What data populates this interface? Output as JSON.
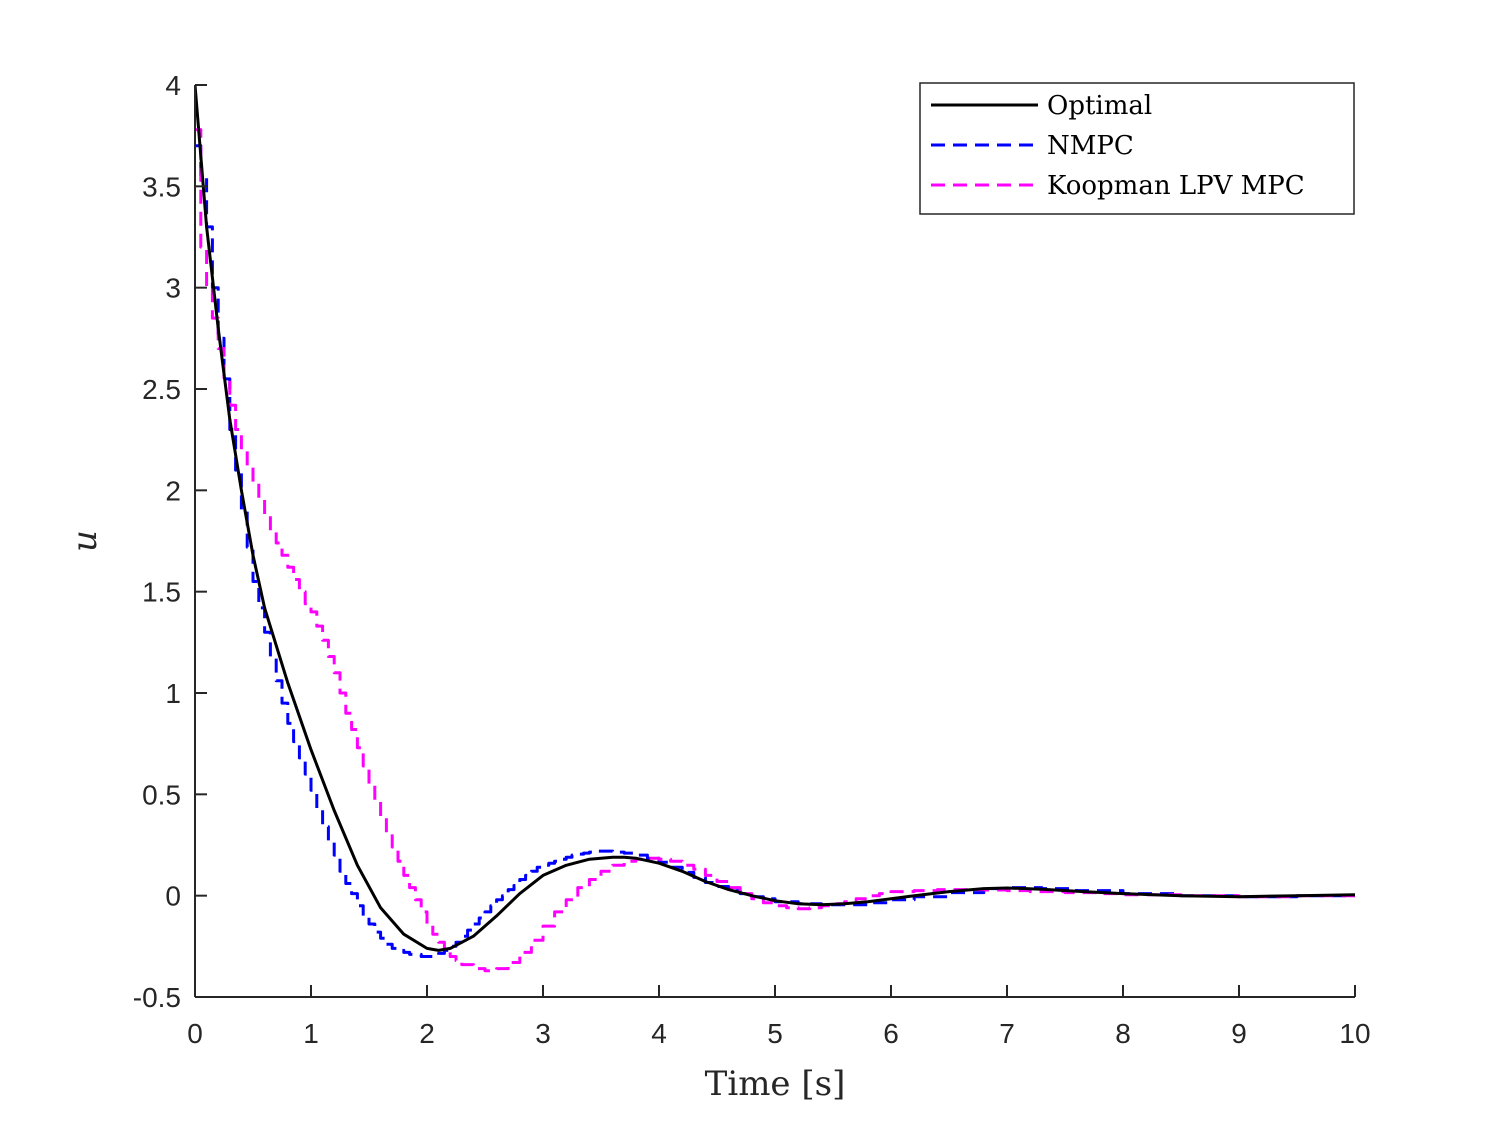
{
  "chart_data": {
    "type": "line",
    "title": "",
    "xlabel": "Time [s]",
    "ylabel": "u",
    "xlim": [
      0,
      10
    ],
    "ylim": [
      -0.5,
      4
    ],
    "xticks": [
      0,
      1,
      2,
      3,
      4,
      5,
      6,
      7,
      8,
      9,
      10
    ],
    "yticks": [
      -0.5,
      0,
      0.5,
      1,
      1.5,
      2,
      2.5,
      3,
      3.5,
      4
    ],
    "xtick_labels": [
      "0",
      "1",
      "2",
      "3",
      "4",
      "5",
      "6",
      "7",
      "8",
      "9",
      "10"
    ],
    "ytick_labels": [
      "-0.5",
      "0",
      "0.5",
      "1",
      "1.5",
      "2",
      "2.5",
      "3",
      "3.5",
      "4"
    ],
    "grid": false,
    "legend_position": "top-right",
    "series": [
      {
        "name": "Optimal",
        "color": "#000000",
        "style": "solid",
        "step": false,
        "x": [
          0,
          0.1,
          0.2,
          0.3,
          0.4,
          0.5,
          0.6,
          0.8,
          1.0,
          1.2,
          1.4,
          1.6,
          1.8,
          2.0,
          2.1,
          2.2,
          2.4,
          2.6,
          2.8,
          3.0,
          3.2,
          3.4,
          3.6,
          3.7,
          3.8,
          4.0,
          4.2,
          4.4,
          4.6,
          4.8,
          5.0,
          5.2,
          5.4,
          5.6,
          5.8,
          6.0,
          6.2,
          6.5,
          6.8,
          7.0,
          7.3,
          7.6,
          8.0,
          8.5,
          9.0,
          9.5,
          10.0
        ],
        "y": [
          4.0,
          3.3,
          2.8,
          2.35,
          2.0,
          1.68,
          1.42,
          1.05,
          0.72,
          0.42,
          0.15,
          -0.06,
          -0.19,
          -0.26,
          -0.27,
          -0.26,
          -0.2,
          -0.1,
          0.01,
          0.1,
          0.15,
          0.18,
          0.19,
          0.19,
          0.185,
          0.16,
          0.12,
          0.07,
          0.03,
          0.0,
          -0.025,
          -0.04,
          -0.045,
          -0.04,
          -0.03,
          -0.015,
          0.0,
          0.02,
          0.035,
          0.038,
          0.032,
          0.022,
          0.01,
          0.0,
          -0.005,
          0.0,
          0.005
        ]
      },
      {
        "name": "NMPC",
        "color": "#0000ff",
        "style": "dashed",
        "step": true,
        "x": [
          0,
          0.05,
          0.1,
          0.15,
          0.2,
          0.25,
          0.3,
          0.35,
          0.4,
          0.45,
          0.5,
          0.55,
          0.6,
          0.65,
          0.7,
          0.75,
          0.8,
          0.85,
          0.9,
          0.95,
          1.0,
          1.05,
          1.1,
          1.15,
          1.2,
          1.25,
          1.3,
          1.35,
          1.4,
          1.45,
          1.5,
          1.55,
          1.6,
          1.65,
          1.7,
          1.75,
          1.8,
          1.85,
          1.9,
          1.95,
          2.0,
          2.05,
          2.1,
          2.15,
          2.2,
          2.25,
          2.3,
          2.35,
          2.4,
          2.45,
          2.5,
          2.55,
          2.6,
          2.65,
          2.7,
          2.75,
          2.8,
          2.85,
          2.9,
          2.95,
          3.0,
          3.05,
          3.1,
          3.15,
          3.2,
          3.25,
          3.3,
          3.35,
          3.4,
          3.45,
          3.5,
          3.55,
          3.6,
          3.7,
          3.8,
          3.9,
          4.0,
          4.1,
          4.2,
          4.3,
          4.4,
          4.5,
          4.6,
          4.7,
          4.8,
          4.9,
          5.0,
          5.2,
          5.4,
          5.6,
          5.8,
          6.0,
          6.2,
          6.5,
          6.8,
          7.0,
          7.3,
          7.6,
          8.0,
          8.5,
          9.0,
          9.5,
          10.0
        ],
        "y": [
          3.7,
          3.55,
          3.3,
          3.0,
          2.75,
          2.55,
          2.3,
          2.1,
          1.9,
          1.72,
          1.55,
          1.42,
          1.3,
          1.18,
          1.06,
          0.95,
          0.85,
          0.76,
          0.68,
          0.6,
          0.52,
          0.43,
          0.34,
          0.27,
          0.2,
          0.12,
          0.06,
          0.01,
          -0.05,
          -0.1,
          -0.14,
          -0.18,
          -0.21,
          -0.24,
          -0.26,
          -0.27,
          -0.28,
          -0.29,
          -0.29,
          -0.3,
          -0.3,
          -0.295,
          -0.285,
          -0.27,
          -0.25,
          -0.23,
          -0.2,
          -0.17,
          -0.14,
          -0.11,
          -0.08,
          -0.05,
          -0.02,
          0.0,
          0.03,
          0.05,
          0.08,
          0.1,
          0.12,
          0.14,
          0.15,
          0.16,
          0.17,
          0.18,
          0.19,
          0.2,
          0.205,
          0.21,
          0.215,
          0.22,
          0.22,
          0.22,
          0.215,
          0.21,
          0.2,
          0.185,
          0.165,
          0.14,
          0.115,
          0.09,
          0.065,
          0.045,
          0.025,
          0.01,
          -0.005,
          -0.015,
          -0.03,
          -0.04,
          -0.045,
          -0.045,
          -0.035,
          -0.02,
          -0.005,
          0.015,
          0.035,
          0.04,
          0.035,
          0.025,
          0.01,
          0.0,
          -0.005,
          0.0,
          0.005
        ]
      },
      {
        "name": "Koopman LPV MPC",
        "color": "#ff00ff",
        "style": "dashed",
        "step": true,
        "x": [
          0,
          0.05,
          0.1,
          0.15,
          0.2,
          0.25,
          0.3,
          0.35,
          0.4,
          0.45,
          0.5,
          0.55,
          0.6,
          0.65,
          0.7,
          0.75,
          0.8,
          0.85,
          0.9,
          0.95,
          1.0,
          1.05,
          1.1,
          1.15,
          1.2,
          1.25,
          1.3,
          1.35,
          1.4,
          1.45,
          1.5,
          1.55,
          1.6,
          1.65,
          1.7,
          1.75,
          1.8,
          1.85,
          1.9,
          1.95,
          2.0,
          2.05,
          2.1,
          2.15,
          2.2,
          2.25,
          2.3,
          2.4,
          2.5,
          2.6,
          2.7,
          2.8,
          2.9,
          3.0,
          3.1,
          3.2,
          3.3,
          3.4,
          3.5,
          3.6,
          3.7,
          3.8,
          3.9,
          4.0,
          4.1,
          4.2,
          4.3,
          4.4,
          4.5,
          4.6,
          4.7,
          4.8,
          4.9,
          5.0,
          5.1,
          5.2,
          5.3,
          5.4,
          5.5,
          5.6,
          5.7,
          5.8,
          5.9,
          6.0,
          6.2,
          6.4,
          6.6,
          6.8,
          7.0,
          7.2,
          7.5,
          7.8,
          8.0,
          8.5,
          9.0,
          9.5,
          10.0
        ],
        "y": [
          3.78,
          3.2,
          3.0,
          2.85,
          2.7,
          2.55,
          2.42,
          2.3,
          2.2,
          2.12,
          2.04,
          1.96,
          1.88,
          1.8,
          1.74,
          1.68,
          1.62,
          1.56,
          1.5,
          1.44,
          1.4,
          1.33,
          1.26,
          1.18,
          1.1,
          1.0,
          0.9,
          0.82,
          0.73,
          0.64,
          0.55,
          0.47,
          0.39,
          0.31,
          0.24,
          0.17,
          0.1,
          0.04,
          -0.02,
          -0.08,
          -0.14,
          -0.19,
          -0.23,
          -0.27,
          -0.3,
          -0.32,
          -0.34,
          -0.36,
          -0.37,
          -0.36,
          -0.33,
          -0.28,
          -0.22,
          -0.15,
          -0.08,
          -0.02,
          0.04,
          0.08,
          0.12,
          0.15,
          0.17,
          0.18,
          0.185,
          0.18,
          0.17,
          0.15,
          0.13,
          0.1,
          0.07,
          0.04,
          0.01,
          -0.015,
          -0.035,
          -0.05,
          -0.06,
          -0.065,
          -0.06,
          -0.05,
          -0.04,
          -0.03,
          -0.015,
          0.0,
          0.01,
          0.02,
          0.025,
          0.03,
          0.03,
          0.028,
          0.025,
          0.02,
          0.015,
          0.01,
          0.005,
          0.0,
          -0.005,
          0.0,
          0.0
        ]
      }
    ]
  }
}
